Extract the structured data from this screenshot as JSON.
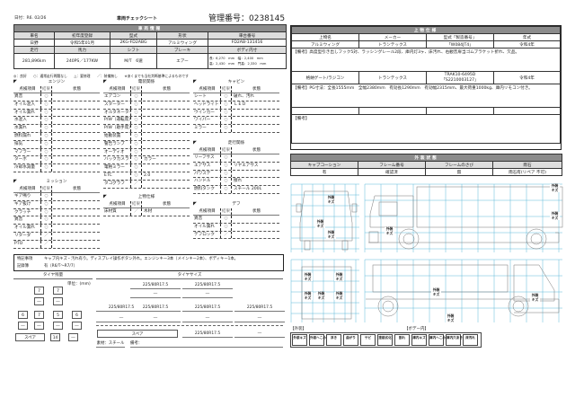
{
  "header": {
    "date": "日付：R6. 02/26",
    "title": "車両チェックシート",
    "mgmt_no": "管理番号：0238145"
  },
  "vehicle": {
    "title": "車両情報",
    "labels1": [
      "車名",
      "初年度登録",
      "型式",
      "形状",
      "車台番号"
    ],
    "values1": [
      "日野",
      "令和5年01月",
      "2KG-FD2ABG",
      "アルミウィング",
      "FD2AB-131416"
    ],
    "labels2": [
      "走行",
      "馬力",
      "シフト",
      "ブレーキ",
      "ボディ内寸"
    ],
    "values2": [
      "281,896km",
      "240PS／177KW",
      "M/T　6速",
      "エアー"
    ],
    "body_dims": [
      "長：6,270　mm　幅：2,400　mm",
      "高：2,430　mm　門高：2,330　mm"
    ]
  },
  "legend_line": "◎：良好　　○：通常走行問題なし　　△：要修理　　／：装備無し　　※あくまでも当社判断基準によるものです",
  "col_headers": [
    "点検項目",
    "結果",
    "状態"
  ],
  "checks": {
    "engine": {
      "title": "エンジン",
      "rows": [
        [
          "異音",
          "○",
          ""
        ],
        [
          "オイル混入",
          "○",
          ""
        ],
        [
          "オイル漏れ",
          "○",
          ""
        ],
        [
          "水混入",
          "○",
          ""
        ],
        [
          "水漏れ",
          "○",
          ""
        ],
        [
          "燃料漏れ",
          "○",
          ""
        ],
        [
          "排気",
          "○",
          ""
        ],
        [
          "マフラー",
          "○",
          ""
        ],
        [
          "ターボ",
          "○",
          ""
        ],
        [
          "冷却水減量",
          "○",
          ""
        ]
      ]
    },
    "mission": {
      "title": "ミッション",
      "rows": [
        [
          "ギア鳴り",
          "○",
          ""
        ],
        [
          "ギア抜け",
          "○",
          ""
        ],
        [
          "クラッチ",
          "○",
          ""
        ],
        [
          "異音",
          "○",
          ""
        ],
        [
          "オイル漏れ",
          "○",
          ""
        ],
        [
          "リターダ",
          "／",
          ""
        ],
        [
          "PTO",
          "／",
          ""
        ]
      ]
    },
    "electric": {
      "title": "電装関係",
      "rows": [
        [
          "エアコン",
          "○",
          ""
        ],
        [
          "スターター",
          "○",
          ""
        ],
        [
          "オルタネーター",
          "○",
          ""
        ],
        [
          "P/W（運転席）",
          "○",
          ""
        ],
        [
          "P/W（助手席）",
          "○",
          ""
        ],
        [
          "始動装置",
          "○",
          ""
        ],
        [
          "警告ランプ",
          "○",
          ""
        ],
        [
          "オーディオ",
          "○",
          ""
        ],
        [
          "バックカメラ",
          "○",
          "カラー"
        ],
        [
          "電格ミラー",
          "○",
          ""
        ],
        [
          "ETC",
          "○",
          "2.0"
        ],
        [
          "タコグラフ",
          "／",
          ""
        ]
      ]
    },
    "body": {
      "title": "上物仕様",
      "rows": [
        [
          "床材質",
          "／",
          "木材"
        ]
      ]
    },
    "cabin": {
      "title": "キャビン",
      "rows": [
        [
          "シート",
          "○",
          "破れ、汚れ"
        ],
        [
          "ヘッドライト",
          "○",
          "ＬＥＤ"
        ],
        [
          "ウインカー",
          "○",
          ""
        ],
        [
          "ワイパー",
          "○",
          ""
        ],
        [
          "ミラー",
          "○",
          ""
        ]
      ]
    },
    "running": {
      "title": "走行関係",
      "rows": [
        [
          "リーフサス",
          "○",
          ""
        ],
        [
          "エアサス",
          "○",
          "リヤエアサス"
        ],
        [
          "パワステ",
          "○",
          ""
        ],
        [
          "ハンドル",
          "○",
          "擦れ"
        ],
        [
          "燃料タンク",
          "○",
          "スチール 200L"
        ]
      ]
    },
    "diff": {
      "title": "デフ",
      "rows": [
        [
          "異音",
          "○",
          ""
        ],
        [
          "オイル漏れ",
          "○",
          ""
        ],
        [
          "デフロック",
          "／",
          ""
        ]
      ]
    }
  },
  "notes": {
    "label1": "特記事項",
    "text1": "キャブ内キズ・汚れ有り。ディスプレイ操作ボタン外れ。エンジンキー3本（メインキー2本）、ボディキー1本。",
    "label2": "記録簿",
    "text2": "有（R6/T〜R7/7）"
  },
  "tire_remain": {
    "title": "タイヤ残量",
    "unit": "単位：(mm)",
    "front": [
      "7",
      "7"
    ],
    "front_sub": [
      "―",
      "―"
    ],
    "rear": [
      "6",
      "7",
      "5",
      "6"
    ],
    "rear_sub": [
      "―",
      "―",
      "―",
      "―"
    ],
    "spare_label": "スペア",
    "spare": [
      "14",
      "―"
    ]
  },
  "tire_size": {
    "title": "タイヤサイズ",
    "front": [
      "225/80R17.5",
      "225/80R17.5"
    ],
    "front_sub": [
      "―",
      "―"
    ],
    "rear": [
      "225/80R17.5",
      "225/80R17.5",
      "225/80R17.5",
      "225/80R17.5"
    ],
    "rear_sub": [
      "―",
      "―",
      "―",
      "―"
    ],
    "spare_label": "スペア",
    "spare": [
      "225/80R17.5",
      "―"
    ],
    "material": "素材：スチール",
    "memo": "備考："
  },
  "upper": {
    "title": "上物仕様",
    "labels": [
      "上物名",
      "メーカー",
      "型式「製造番号」",
      "年式"
    ],
    "row1": [
      "アルミウィング",
      "トランテックス",
      "「W084JT4」",
      "令和4年"
    ],
    "memo1": "【備考】高度型引き出しフック5対、ラッシングレール2段、庫内灯3ヶ、床汚れ、右観音扉当ゴムブラケット折れ、欠品。",
    "row2": [
      "格納ゲート/ラジコン",
      "トランテックス",
      "TRAK10-6495D",
      "令和4年"
    ],
    "row2_serial": "「S2210003127」",
    "memo2": "【備考】PG寸法：全長1555mm　全幅2380mm　有効長1290mm　有効幅2315mm、最大荷重1000kg、庫内リモコン付き。",
    "memo3": "【備考】"
  },
  "exterior": {
    "title": "外装状態",
    "labels": [
      "キャブコーション",
      "フレーム番号",
      "フレームのさび",
      "雨石"
    ],
    "values": [
      "有",
      "確認済",
      "無",
      "雨石有(リペア 不可)"
    ]
  },
  "damage_mark": "外装キズ",
  "legend": {
    "outer_label": "【外装】",
    "inner_label": "【ボデー内】",
    "items": [
      "外装キズ",
      "外装へこみ",
      "浮き",
      "曲がり",
      "サビ",
      "塗装劣化",
      "割れ",
      "庫内キズ",
      "庫内へこみ",
      "庫内穴あき",
      "床汚れ"
    ]
  },
  "colors": {
    "header_gray": "#8c8c8c",
    "grid_blue": "#5fb8d8"
  }
}
